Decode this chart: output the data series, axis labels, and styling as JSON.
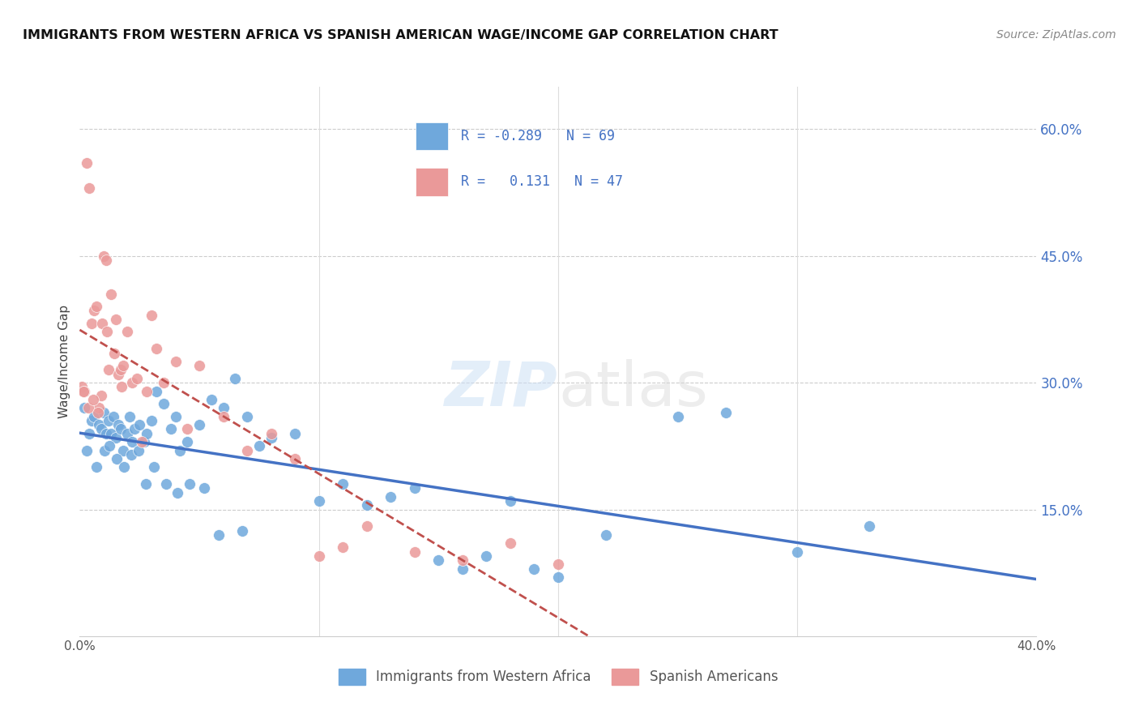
{
  "title": "IMMIGRANTS FROM WESTERN AFRICA VS SPANISH AMERICAN WAGE/INCOME GAP CORRELATION CHART",
  "source": "Source: ZipAtlas.com",
  "ylabel": "Wage/Income Gap",
  "right_yticks": [
    15.0,
    30.0,
    45.0,
    60.0
  ],
  "legend_label1": "Immigrants from Western Africa",
  "legend_label2": "Spanish Americans",
  "R1": -0.289,
  "N1": 69,
  "R2": 0.131,
  "N2": 47,
  "blue_color": "#6fa8dc",
  "pink_color": "#ea9999",
  "line_blue": "#4472c4",
  "line_pink": "#c0504d",
  "watermark_zip": "ZIP",
  "watermark_atlas": "atlas",
  "xlim": [
    0,
    40
  ],
  "ylim": [
    0,
    65
  ],
  "blue_x": [
    0.2,
    0.4,
    0.5,
    0.6,
    0.8,
    0.9,
    1.0,
    1.1,
    1.2,
    1.3,
    1.4,
    1.5,
    1.6,
    1.7,
    1.8,
    2.0,
    2.1,
    2.2,
    2.3,
    2.5,
    2.7,
    2.8,
    3.0,
    3.2,
    3.5,
    3.8,
    4.0,
    4.2,
    4.5,
    5.0,
    5.5,
    6.0,
    6.5,
    7.0,
    7.5,
    8.0,
    9.0,
    10.0,
    11.0,
    12.0,
    13.0,
    14.0,
    15.0,
    16.0,
    17.0,
    18.0,
    19.0,
    20.0,
    22.0,
    25.0,
    27.0,
    30.0,
    0.3,
    0.7,
    1.05,
    1.25,
    1.55,
    1.85,
    2.15,
    2.45,
    2.75,
    3.1,
    3.6,
    4.1,
    4.6,
    5.2,
    5.8,
    6.8,
    33.0
  ],
  "blue_y": [
    27.0,
    24.0,
    25.5,
    26.0,
    25.0,
    24.5,
    26.5,
    24.0,
    25.5,
    24.0,
    26.0,
    23.5,
    25.0,
    24.5,
    22.0,
    24.0,
    26.0,
    23.0,
    24.5,
    25.0,
    23.0,
    24.0,
    25.5,
    29.0,
    27.5,
    24.5,
    26.0,
    22.0,
    23.0,
    25.0,
    28.0,
    27.0,
    30.5,
    26.0,
    22.5,
    23.5,
    24.0,
    16.0,
    18.0,
    15.5,
    16.5,
    17.5,
    9.0,
    8.0,
    9.5,
    16.0,
    8.0,
    7.0,
    12.0,
    26.0,
    26.5,
    10.0,
    22.0,
    20.0,
    22.0,
    22.5,
    21.0,
    20.0,
    21.5,
    22.0,
    18.0,
    20.0,
    18.0,
    17.0,
    18.0,
    17.5,
    12.0,
    12.5,
    13.0
  ],
  "pink_x": [
    0.1,
    0.2,
    0.3,
    0.4,
    0.5,
    0.6,
    0.7,
    0.8,
    0.9,
    1.0,
    1.1,
    1.2,
    1.3,
    1.5,
    1.6,
    1.7,
    1.8,
    2.0,
    2.2,
    2.4,
    2.6,
    2.8,
    3.0,
    3.2,
    3.5,
    4.0,
    4.5,
    5.0,
    6.0,
    7.0,
    8.0,
    9.0,
    10.0,
    11.0,
    12.0,
    14.0,
    16.0,
    18.0,
    20.0,
    0.15,
    0.35,
    0.55,
    0.75,
    0.95,
    1.15,
    1.45,
    1.75
  ],
  "pink_y": [
    29.5,
    29.0,
    56.0,
    53.0,
    37.0,
    38.5,
    39.0,
    27.0,
    28.5,
    45.0,
    44.5,
    31.5,
    40.5,
    37.5,
    31.0,
    31.5,
    32.0,
    36.0,
    30.0,
    30.5,
    23.0,
    29.0,
    38.0,
    34.0,
    30.0,
    32.5,
    24.5,
    32.0,
    26.0,
    22.0,
    24.0,
    21.0,
    9.5,
    10.5,
    13.0,
    10.0,
    9.0,
    11.0,
    8.5,
    29.0,
    27.0,
    28.0,
    26.5,
    37.0,
    36.0,
    33.5,
    29.5
  ]
}
